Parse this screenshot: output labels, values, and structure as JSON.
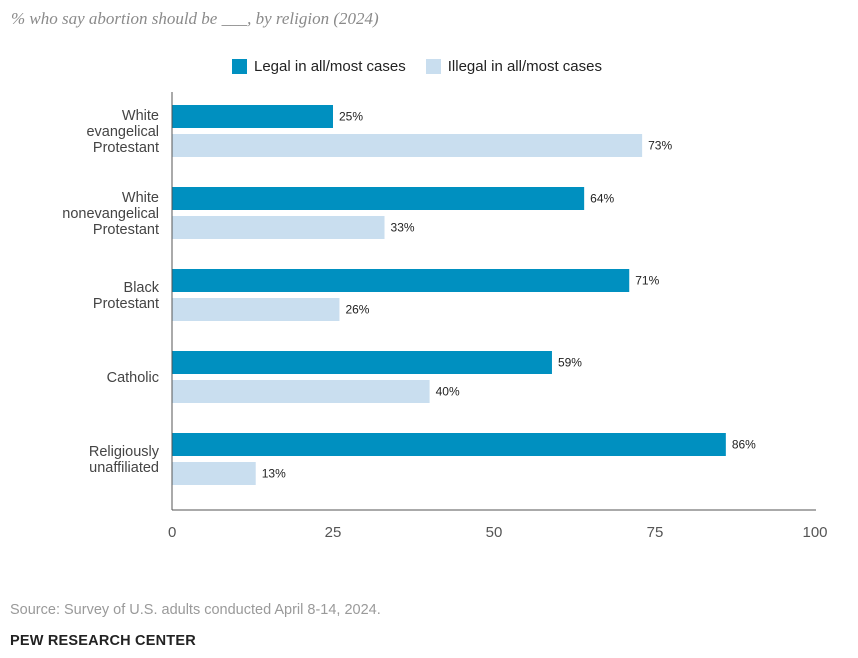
{
  "subtitle": "% who say abortion should be ___, by religion (2024)",
  "legend": {
    "legal": "Legal in all/most cases",
    "illegal": "Illegal in all/most cases"
  },
  "colors": {
    "legal": "#0090c0",
    "illegal": "#c9deef",
    "axis": "#555555"
  },
  "source": "Source: Survey of U.S. adults conducted April 8-14, 2024.",
  "brand": "PEW RESEARCH CENTER",
  "chart_data": {
    "type": "bar",
    "orientation": "horizontal",
    "title": "% who say abortion should be ___, by religion (2024)",
    "categories": [
      [
        "White",
        "evangelical",
        "Protestant"
      ],
      [
        "White",
        "nonevangelical",
        "Protestant"
      ],
      [
        "Black",
        "Protestant"
      ],
      [
        "Catholic"
      ],
      [
        "Religiously",
        "unaffiliated"
      ]
    ],
    "series": [
      {
        "name": "Legal in all/most cases",
        "key": "legal",
        "values": [
          25,
          64,
          71,
          59,
          86
        ],
        "labels": [
          "25%",
          "64%",
          "71%",
          "59%",
          "86%"
        ]
      },
      {
        "name": "Illegal in all/most cases",
        "key": "illegal",
        "values": [
          73,
          33,
          26,
          40,
          13
        ],
        "labels": [
          "73%",
          "33%",
          "26%",
          "40%",
          "13%"
        ]
      }
    ],
    "xlim": [
      0,
      100
    ],
    "xticks": [
      0,
      25,
      50,
      75,
      100
    ],
    "xlabel": "",
    "ylabel": "",
    "grid": false,
    "legend_position": "top"
  }
}
